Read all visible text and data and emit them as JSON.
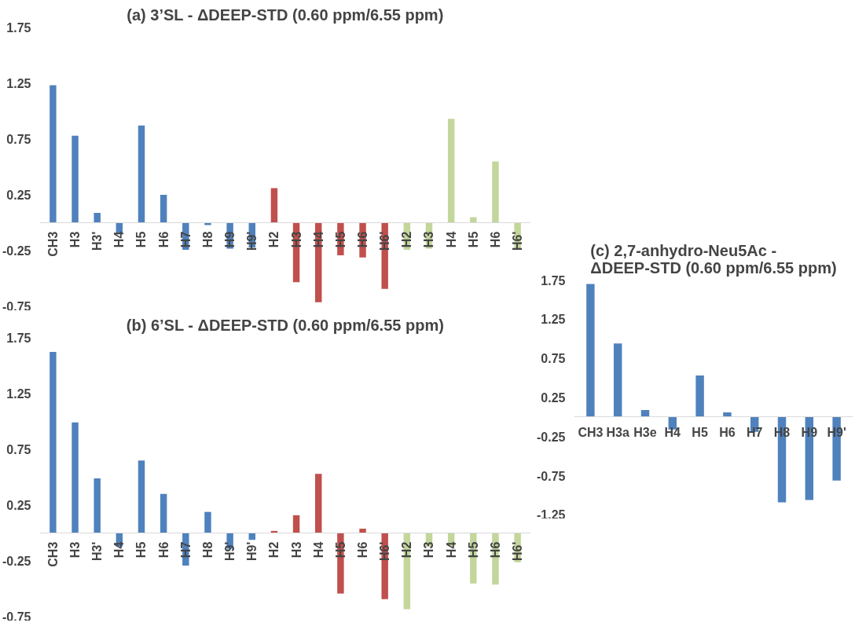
{
  "chart_data": [
    {
      "type": "bar",
      "title": "(a) 3’SL - ΔDEEP-STD (0.60 ppm/6.55 ppm)",
      "categories": [
        "CH3",
        "H3",
        "H3'",
        "H4",
        "H5",
        "H6",
        "H7",
        "H8",
        "H9",
        "H9'",
        "H2",
        "H3",
        "H4",
        "H5",
        "H6",
        "H6'",
        "H2",
        "H3",
        "H4",
        "H5",
        "H6",
        "H6'"
      ],
      "values": [
        1.23,
        0.78,
        0.09,
        -0.1,
        0.87,
        0.25,
        -0.24,
        -0.02,
        -0.23,
        -0.22,
        0.31,
        -0.53,
        -0.71,
        -0.29,
        -0.31,
        -0.59,
        -0.24,
        -0.23,
        0.93,
        0.05,
        0.55,
        -0.24
      ],
      "colors": [
        "#4f81bd",
        "#4f81bd",
        "#4f81bd",
        "#4f81bd",
        "#4f81bd",
        "#4f81bd",
        "#4f81bd",
        "#4f81bd",
        "#4f81bd",
        "#4f81bd",
        "#c0504d",
        "#c0504d",
        "#c0504d",
        "#c0504d",
        "#c0504d",
        "#c0504d",
        "#c3d69b",
        "#c3d69b",
        "#c3d69b",
        "#c3d69b",
        "#c3d69b",
        "#c3d69b"
      ],
      "ylim": [
        -0.75,
        1.75
      ],
      "yticks": [
        -0.75,
        -0.25,
        0.25,
        0.75,
        1.25,
        1.75
      ],
      "grid": false
    },
    {
      "type": "bar",
      "title": "(b) 6’SL - ΔDEEP-STD (0.60 ppm/6.55 ppm)",
      "categories": [
        "CH3",
        "H3",
        "H3'",
        "H4",
        "H5",
        "H6",
        "H7",
        "H8",
        "H9'",
        "H9'",
        "H2",
        "H3",
        "H4",
        "H5",
        "H6",
        "H6'",
        "H2",
        "H3",
        "H4",
        "H5",
        "H6",
        "H6'"
      ],
      "values": [
        1.62,
        0.99,
        0.49,
        -0.12,
        0.65,
        0.35,
        -0.29,
        0.19,
        -0.14,
        -0.06,
        0.02,
        0.16,
        0.53,
        -0.54,
        0.04,
        -0.59,
        -0.68,
        -0.12,
        -0.12,
        -0.45,
        -0.46,
        -0.26
      ],
      "colors": [
        "#4f81bd",
        "#4f81bd",
        "#4f81bd",
        "#4f81bd",
        "#4f81bd",
        "#4f81bd",
        "#4f81bd",
        "#4f81bd",
        "#4f81bd",
        "#4f81bd",
        "#c0504d",
        "#c0504d",
        "#c0504d",
        "#c0504d",
        "#c0504d",
        "#c0504d",
        "#c3d69b",
        "#c3d69b",
        "#c3d69b",
        "#c3d69b",
        "#c3d69b",
        "#c3d69b"
      ],
      "ylim": [
        -0.75,
        1.75
      ],
      "yticks": [
        -0.75,
        -0.25,
        0.25,
        0.75,
        1.25,
        1.75
      ],
      "grid": false
    },
    {
      "type": "bar",
      "title": "(c) 2,7-anhydro-Neu5Ac -\nΔDEEP-STD (0.60 ppm/6.55 ppm)",
      "categories": [
        "CH3",
        "H3a",
        "H3e",
        "H4",
        "H5",
        "H6",
        "H7",
        "H8",
        "H9",
        "H9'"
      ],
      "values": [
        1.7,
        0.94,
        0.09,
        -0.16,
        0.53,
        0.06,
        -0.19,
        -1.09,
        -1.06,
        -0.81
      ],
      "colors": [
        "#4f81bd",
        "#4f81bd",
        "#4f81bd",
        "#4f81bd",
        "#4f81bd",
        "#4f81bd",
        "#4f81bd",
        "#4f81bd",
        "#4f81bd",
        "#4f81bd"
      ],
      "ylim": [
        -1.25,
        1.75
      ],
      "yticks": [
        -1.25,
        -0.75,
        -0.25,
        0.25,
        0.75,
        1.25,
        1.75
      ],
      "grid": false
    }
  ]
}
